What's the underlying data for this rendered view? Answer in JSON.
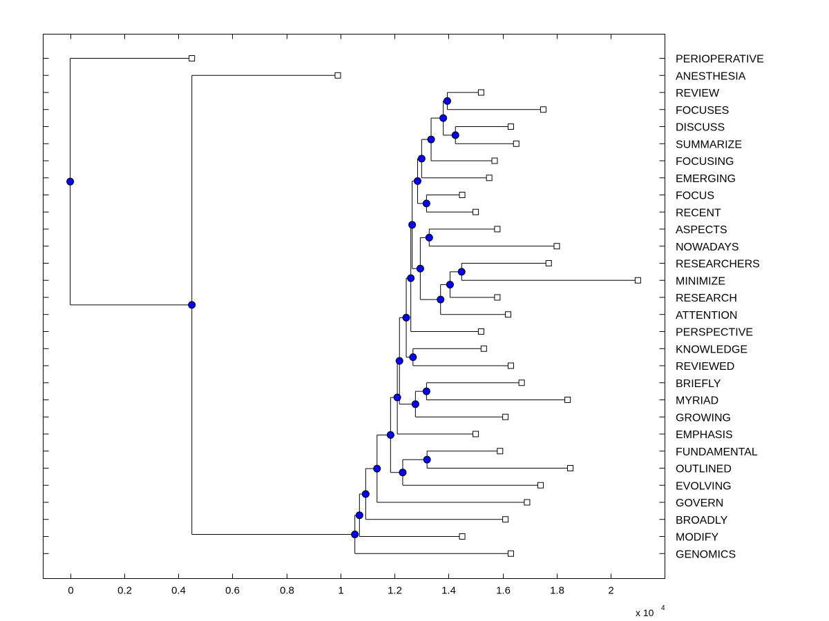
{
  "chart_data": {
    "type": "dendrogram",
    "title": "",
    "xlabel": "",
    "ylabel": "",
    "x_multiplier": {
      "base": "x 10",
      "exponent": "4",
      "value": 10000
    },
    "xlim": [
      -0.1,
      2.2
    ],
    "x_ticks": [
      0,
      0.2,
      0.4,
      0.6,
      0.8,
      1,
      1.2,
      1.4,
      1.6,
      1.8,
      2
    ],
    "x_tick_labels": [
      "0",
      "0.2",
      "0.4",
      "0.6",
      "0.8",
      "1",
      "1.2",
      "1.4",
      "1.6",
      "1.8",
      "2"
    ],
    "grid": false,
    "leaves": [
      {
        "label": "PERIOPERATIVE",
        "x": 0.45
      },
      {
        "label": "ANESTHESIA",
        "x": 0.99
      },
      {
        "label": "REVIEW",
        "x": 1.52
      },
      {
        "label": "FOCUSES",
        "x": 1.75
      },
      {
        "label": "DISCUSS",
        "x": 1.63
      },
      {
        "label": "SUMMARIZE",
        "x": 1.65
      },
      {
        "label": "FOCUSING",
        "x": 1.57
      },
      {
        "label": "EMERGING",
        "x": 1.55
      },
      {
        "label": "FOCUS",
        "x": 1.45
      },
      {
        "label": "RECENT",
        "x": 1.5
      },
      {
        "label": "ASPECTS",
        "x": 1.58
      },
      {
        "label": "NOWADAYS",
        "x": 1.8
      },
      {
        "label": "RESEARCHERS",
        "x": 1.77
      },
      {
        "label": "MINIMIZE",
        "x": 2.1
      },
      {
        "label": "RESEARCH",
        "x": 1.58
      },
      {
        "label": "ATTENTION",
        "x": 1.62
      },
      {
        "label": "PERSPECTIVE",
        "x": 1.52
      },
      {
        "label": "KNOWLEDGE",
        "x": 1.53
      },
      {
        "label": "REVIEWED",
        "x": 1.63
      },
      {
        "label": "BRIEFLY",
        "x": 1.67
      },
      {
        "label": "MYRIAD",
        "x": 1.84
      },
      {
        "label": "GROWING",
        "x": 1.61
      },
      {
        "label": "EMPHASIS",
        "x": 1.5
      },
      {
        "label": "FUNDAMENTAL",
        "x": 1.59
      },
      {
        "label": "OUTLINED",
        "x": 1.85
      },
      {
        "label": "EVOLVING",
        "x": 1.74
      },
      {
        "label": "GOVERN",
        "x": 1.69
      },
      {
        "label": "BROADLY",
        "x": 1.61
      },
      {
        "label": "MODIFY",
        "x": 1.45
      },
      {
        "label": "GENOMICS",
        "x": 1.63
      }
    ],
    "nodes": [
      {
        "id": "n1",
        "x": 1.395,
        "children": [
          "L2",
          "L3"
        ]
      },
      {
        "id": "n2",
        "x": 1.425,
        "children": [
          "L4",
          "L5"
        ]
      },
      {
        "id": "n3",
        "x": 1.38,
        "children": [
          "n1",
          "n2"
        ]
      },
      {
        "id": "n4",
        "x": 1.335,
        "children": [
          "n3",
          "L6"
        ]
      },
      {
        "id": "n5",
        "x": 1.3,
        "children": [
          "n4",
          "L7"
        ]
      },
      {
        "id": "n6",
        "x": 1.318,
        "children": [
          "L8",
          "L9"
        ]
      },
      {
        "id": "n7",
        "x": 1.285,
        "children": [
          "n5",
          "n6"
        ]
      },
      {
        "id": "n8",
        "x": 1.328,
        "children": [
          "L10",
          "L11"
        ]
      },
      {
        "id": "n9",
        "x": 1.448,
        "children": [
          "L12",
          "L13"
        ]
      },
      {
        "id": "n10",
        "x": 1.405,
        "children": [
          "n9",
          "L14"
        ]
      },
      {
        "id": "n11",
        "x": 1.37,
        "children": [
          "n10",
          "L15"
        ]
      },
      {
        "id": "n12",
        "x": 1.295,
        "children": [
          "n8",
          "n11"
        ]
      },
      {
        "id": "n13",
        "x": 1.265,
        "children": [
          "n7",
          "n12"
        ]
      },
      {
        "id": "n14",
        "x": 1.26,
        "children": [
          "n13",
          "L16"
        ]
      },
      {
        "id": "n15",
        "x": 1.268,
        "children": [
          "L17",
          "L18"
        ]
      },
      {
        "id": "n16",
        "x": 1.243,
        "children": [
          "n14",
          "n15"
        ]
      },
      {
        "id": "n17",
        "x": 1.318,
        "children": [
          "L19",
          "L20"
        ]
      },
      {
        "id": "n18",
        "x": 1.277,
        "children": [
          "n17",
          "L21"
        ]
      },
      {
        "id": "n19",
        "x": 1.218,
        "children": [
          "n16",
          "n18"
        ]
      },
      {
        "id": "n20",
        "x": 1.21,
        "children": [
          "n19",
          "L22"
        ]
      },
      {
        "id": "n21",
        "x": 1.32,
        "children": [
          "L23",
          "L24"
        ]
      },
      {
        "id": "n22",
        "x": 1.23,
        "children": [
          "n21",
          "L25"
        ]
      },
      {
        "id": "n23",
        "x": 1.185,
        "children": [
          "n20",
          "n22"
        ]
      },
      {
        "id": "n24",
        "x": 1.135,
        "children": [
          "n23",
          "L26"
        ]
      },
      {
        "id": "n25",
        "x": 1.093,
        "children": [
          "n24",
          "L27"
        ]
      },
      {
        "id": "n26",
        "x": 1.07,
        "children": [
          "n25",
          "L28"
        ]
      },
      {
        "id": "n27",
        "x": 1.053,
        "children": [
          "n26",
          "L29"
        ]
      },
      {
        "id": "n28",
        "x": 0.45,
        "children": [
          "L1",
          "n27"
        ]
      },
      {
        "id": "n29",
        "x": 0.0,
        "children": [
          "L0",
          "n28"
        ]
      }
    ]
  }
}
